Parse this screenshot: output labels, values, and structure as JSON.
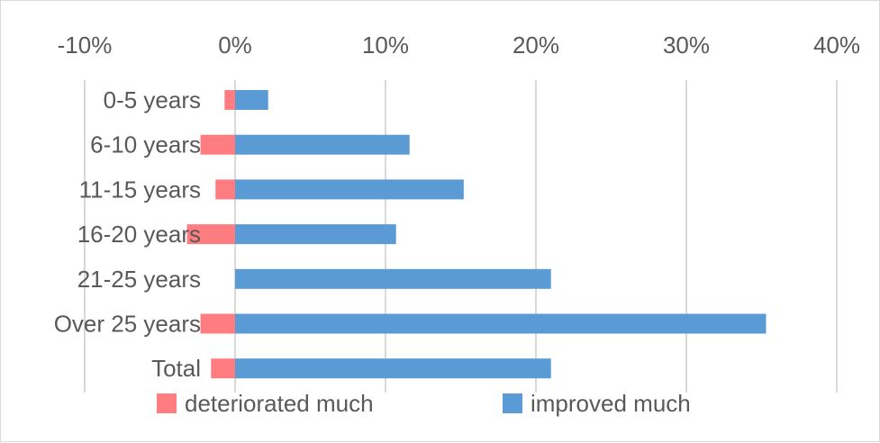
{
  "chart_data": {
    "type": "bar",
    "orientation": "horizontal",
    "title": "",
    "xlabel": "",
    "ylabel": "",
    "xlim": [
      -10,
      40
    ],
    "x_ticks": [
      -10,
      0,
      10,
      20,
      30,
      40
    ],
    "x_tick_labels": [
      "-10%",
      "0%",
      "10%",
      "20%",
      "30%",
      "40%"
    ],
    "x_axis_position": "top",
    "grid": "vertical",
    "legend": "bottom",
    "categories": [
      "0-5 years",
      "6-10 years",
      "11-15 years",
      "16-20 years",
      "21-25 years",
      "Over 25 years",
      "Total"
    ],
    "series": [
      {
        "name": "deteriorated much",
        "color": "#ff7c80",
        "values": [
          -0.7,
          -2.3,
          -1.3,
          -3.2,
          0,
          -2.3,
          -1.6
        ]
      },
      {
        "name": "improved much",
        "color": "#5b9bd5",
        "values": [
          2.2,
          11.6,
          15.2,
          10.7,
          21.0,
          35.3,
          21.0
        ]
      }
    ]
  }
}
